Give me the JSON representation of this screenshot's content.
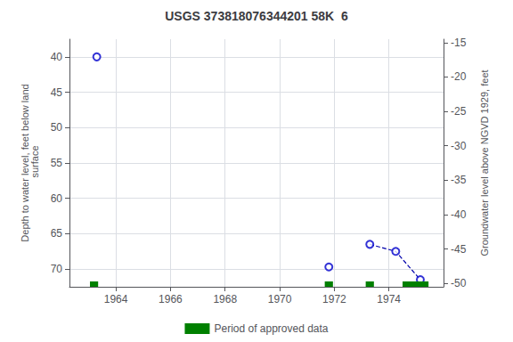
{
  "chart_data": {
    "type": "scatter",
    "title": "USGS 373818076344201 58K  6",
    "ylabel": "Depth to water level, feet below land\n surface",
    "y2label": "Groundwater level above NGVD 1929, feet",
    "xlim": [
      1962.3,
      1976.0
    ],
    "xticks": [
      1964,
      1966,
      1968,
      1970,
      1972,
      1974
    ],
    "ylim": [
      72.5,
      37.5
    ],
    "yticks": [
      40,
      45,
      50,
      55,
      60,
      65,
      70
    ],
    "y2lim": [
      -50.5,
      -14.5
    ],
    "y2ticks": [
      -15,
      -20,
      -25,
      -30,
      -35,
      -40,
      -45,
      -50
    ],
    "grid": true,
    "legend": "bottom",
    "series": [
      {
        "type": "scatter",
        "marker": "open circle",
        "color": "#0000cc",
        "x": [
          1963.3,
          1971.8,
          1973.3,
          1974.25,
          1975.15
        ],
        "values": [
          40.0,
          69.7,
          66.5,
          67.5,
          71.5
        ]
      },
      {
        "type": "line",
        "line_style": "dashed",
        "color": "#0000aa",
        "x": [
          1973.3,
          1974.25,
          1975.15
        ],
        "values": [
          66.5,
          67.5,
          71.5
        ]
      }
    ],
    "periods": {
      "name": "Period of approved data",
      "color": "#008000",
      "starts": [
        1963.05,
        1971.65,
        1973.15,
        1974.5
      ],
      "ends": [
        1963.35,
        1971.95,
        1973.45,
        1975.45
      ]
    }
  }
}
